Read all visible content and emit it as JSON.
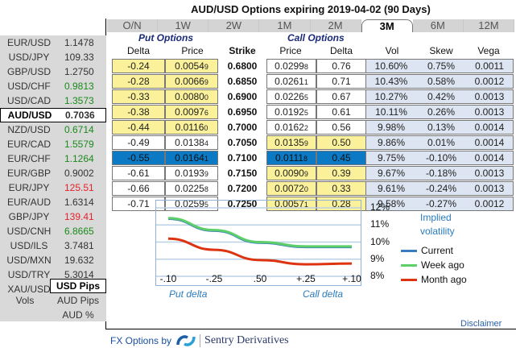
{
  "title": "AUD/USD Options expiring 2019-04-02 (90 Days)",
  "sidebar": {
    "pairs": [
      {
        "name": "EUR/USD",
        "value": "1.1478",
        "color": "black"
      },
      {
        "name": "USD/JPY",
        "value": "109.33",
        "color": "black"
      },
      {
        "name": "GBP/USD",
        "value": "1.2750",
        "color": "black"
      },
      {
        "name": "USD/CHF",
        "value": "0.9813",
        "color": "green"
      },
      {
        "name": "USD/CAD",
        "value": "1.3573",
        "color": "green"
      },
      {
        "name": "AUD/USD",
        "value": "0.7036",
        "color": "black",
        "active": true
      },
      {
        "name": "NZD/USD",
        "value": "0.6714",
        "color": "green"
      },
      {
        "name": "EUR/CAD",
        "value": "1.5579",
        "color": "green"
      },
      {
        "name": "EUR/CHF",
        "value": "1.1264",
        "color": "green"
      },
      {
        "name": "EUR/GBP",
        "value": "0.9002",
        "color": "black"
      },
      {
        "name": "EUR/JPY",
        "value": "125.51",
        "color": "red"
      },
      {
        "name": "EUR/AUD",
        "value": "1.6314",
        "color": "black"
      },
      {
        "name": "GBP/JPY",
        "value": "139.41",
        "color": "red"
      },
      {
        "name": "USD/CNH",
        "value": "6.8665",
        "color": "green"
      },
      {
        "name": "USD/ILS",
        "value": "3.7481",
        "color": "black"
      },
      {
        "name": "USD/MXN",
        "value": "19.632",
        "color": "black"
      },
      {
        "name": "USD/TRY",
        "value": "5.3014",
        "color": "black"
      },
      {
        "name": "XAU/USD",
        "value": "1285.6",
        "color": "black"
      }
    ],
    "vols_label": "Vols",
    "units": [
      {
        "label": "USD Pips",
        "active": true
      },
      {
        "label": "AUD Pips",
        "active": false
      },
      {
        "label": "AUD %",
        "active": false
      }
    ]
  },
  "tabs": [
    {
      "label": "O/N",
      "active": false
    },
    {
      "label": "1W",
      "active": false
    },
    {
      "label": "2W",
      "active": false
    },
    {
      "label": "1M",
      "active": false
    },
    {
      "label": "2M",
      "active": false
    },
    {
      "label": "3M",
      "active": true
    },
    {
      "label": "6M",
      "active": false
    },
    {
      "label": "12M",
      "active": false
    }
  ],
  "table": {
    "put_header": "Put Options",
    "call_header": "Call Options",
    "columns": {
      "put_delta": "Delta",
      "put_price": "Price",
      "strike": "Strike",
      "call_price": "Price",
      "call_delta": "Delta",
      "vol": "Vol",
      "skew": "Skew",
      "vega": "Vega"
    },
    "rows": [
      {
        "put_delta": "-0.24",
        "put_price": "0.0054",
        "put_pip": "9",
        "strike": "0.6800",
        "call_price": "0.0299",
        "call_pip": "8",
        "call_delta": "0.76",
        "vol": "10.60%",
        "skew": "0.75%",
        "vega": "0.0011",
        "side": "put"
      },
      {
        "put_delta": "-0.28",
        "put_price": "0.0066",
        "put_pip": "9",
        "strike": "0.6850",
        "call_price": "0.0261",
        "call_pip": "1",
        "call_delta": "0.71",
        "vol": "10.43%",
        "skew": "0.58%",
        "vega": "0.0012",
        "side": "put"
      },
      {
        "put_delta": "-0.33",
        "put_price": "0.0080",
        "put_pip": "0",
        "strike": "0.6900",
        "call_price": "0.0226",
        "call_pip": "5",
        "call_delta": "0.67",
        "vol": "10.27%",
        "skew": "0.42%",
        "vega": "0.0013",
        "side": "put"
      },
      {
        "put_delta": "-0.38",
        "put_price": "0.0097",
        "put_pip": "6",
        "strike": "0.6950",
        "call_price": "0.0192",
        "call_pip": "5",
        "call_delta": "0.61",
        "vol": "10.11%",
        "skew": "0.26%",
        "vega": "0.0013",
        "side": "put"
      },
      {
        "put_delta": "-0.44",
        "put_price": "0.0116",
        "put_pip": "0",
        "strike": "0.7000",
        "call_price": "0.0162",
        "call_pip": "2",
        "call_delta": "0.56",
        "vol": "9.98%",
        "skew": "0.13%",
        "vega": "0.0014",
        "side": "put"
      },
      {
        "put_delta": "-0.49",
        "put_price": "0.0138",
        "put_pip": "4",
        "strike": "0.7050",
        "call_price": "0.0135",
        "call_pip": "9",
        "call_delta": "0.50",
        "vol": "9.86%",
        "skew": "0.01%",
        "vega": "0.0014",
        "side": "call"
      },
      {
        "put_delta": "-0.55",
        "put_price": "0.0164",
        "put_pip": "1",
        "strike": "0.7100",
        "call_price": "0.0111",
        "call_pip": "8",
        "call_delta": "0.45",
        "vol": "9.75%",
        "skew": "-0.10%",
        "vega": "0.0014",
        "side": "selected"
      },
      {
        "put_delta": "-0.61",
        "put_price": "0.0193",
        "put_pip": "9",
        "strike": "0.7150",
        "call_price": "0.0090",
        "call_pip": "9",
        "call_delta": "0.39",
        "vol": "9.67%",
        "skew": "-0.18%",
        "vega": "0.0013",
        "side": "call"
      },
      {
        "put_delta": "-0.66",
        "put_price": "0.0225",
        "put_pip": "8",
        "strike": "0.7200",
        "call_price": "0.0072",
        "call_pip": "0",
        "call_delta": "0.33",
        "vol": "9.61%",
        "skew": "-0.24%",
        "vega": "0.0013",
        "side": "call"
      },
      {
        "put_delta": "-0.71",
        "put_price": "0.0259",
        "put_pip": "5",
        "strike": "0.7250",
        "call_price": "0.0057",
        "call_pip": "1",
        "call_delta": "0.28",
        "vol": "9.58%",
        "skew": "-0.27%",
        "vega": "0.0012",
        "side": "call"
      }
    ]
  },
  "chart_data": {
    "type": "line",
    "title": "Implied volatility",
    "categories": [
      "-.10",
      "-.25",
      ".50",
      "+.25",
      "+.10"
    ],
    "ylim": [
      8,
      12
    ],
    "yticks": [
      "12%",
      "11%",
      "10%",
      "9%",
      "8%"
    ],
    "xlabel_left": "Put delta",
    "xlabel_right": "Call delta",
    "series": [
      {
        "name": "Current",
        "color": "#3a7bbf",
        "values": [
          11.4,
          10.7,
          10.0,
          9.75,
          9.75
        ]
      },
      {
        "name": "Week ago",
        "color": "#5ccf6a",
        "values": [
          11.4,
          10.7,
          10.0,
          9.75,
          9.75
        ]
      },
      {
        "name": "Month ago",
        "color": "#dd3311",
        "values": [
          10.2,
          9.55,
          8.95,
          8.7,
          8.75
        ]
      }
    ]
  },
  "footer": {
    "brand_prefix": "FX Options by",
    "brand_name": "Sentry Derivatives",
    "disclaimer": "Disclaimer"
  }
}
